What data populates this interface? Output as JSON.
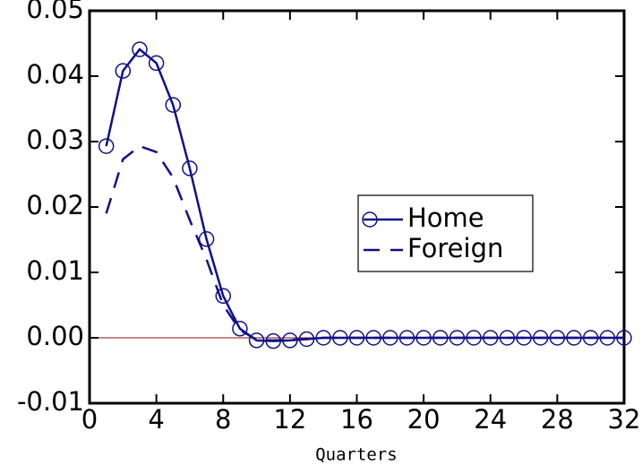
{
  "chart_data": {
    "type": "line",
    "xlabel": "Quarters",
    "x": [
      1,
      2,
      3,
      4,
      5,
      6,
      7,
      8,
      9,
      10,
      11,
      12,
      13,
      14,
      15,
      16,
      17,
      18,
      19,
      20,
      21,
      22,
      23,
      24,
      25,
      26,
      27,
      28,
      29,
      30,
      31,
      32
    ],
    "series": [
      {
        "name": "Home",
        "color": "#10108a",
        "marker": "circle",
        "dash": "solid",
        "values": [
          0.0293,
          0.0408,
          0.0441,
          0.042,
          0.0356,
          0.0259,
          0.0151,
          0.0064,
          0.0014,
          -0.0004,
          -0.0005,
          -0.0004,
          -0.0002,
          0,
          0,
          0,
          0,
          0,
          0,
          0,
          0,
          0,
          0,
          0,
          0,
          0,
          0,
          0,
          0,
          0,
          0,
          0
        ]
      },
      {
        "name": "Foreign",
        "color": "#10108a",
        "marker": "none",
        "dash": "dashed",
        "values": [
          0.019,
          0.0273,
          0.0293,
          0.0284,
          0.0245,
          0.018,
          0.012,
          0.005,
          0.0012,
          -0.0003,
          -0.0004,
          -0.0003,
          -0.0002,
          0,
          0,
          0,
          0,
          0,
          0,
          0,
          0,
          0,
          0,
          0,
          0,
          0,
          0,
          0,
          0,
          0,
          0,
          0
        ]
      }
    ],
    "xlim": [
      0,
      32
    ],
    "xticks": [
      0,
      4,
      8,
      12,
      16,
      20,
      24,
      28,
      32
    ],
    "ylim": [
      -0.01,
      0.05
    ],
    "yticks": [
      -0.01,
      {
        "value": 0,
        "label": "0.00"
      },
      0.01,
      0.02,
      0.03,
      0.04,
      0.05
    ],
    "zero_line_color": "#a04040",
    "legend": "right"
  }
}
